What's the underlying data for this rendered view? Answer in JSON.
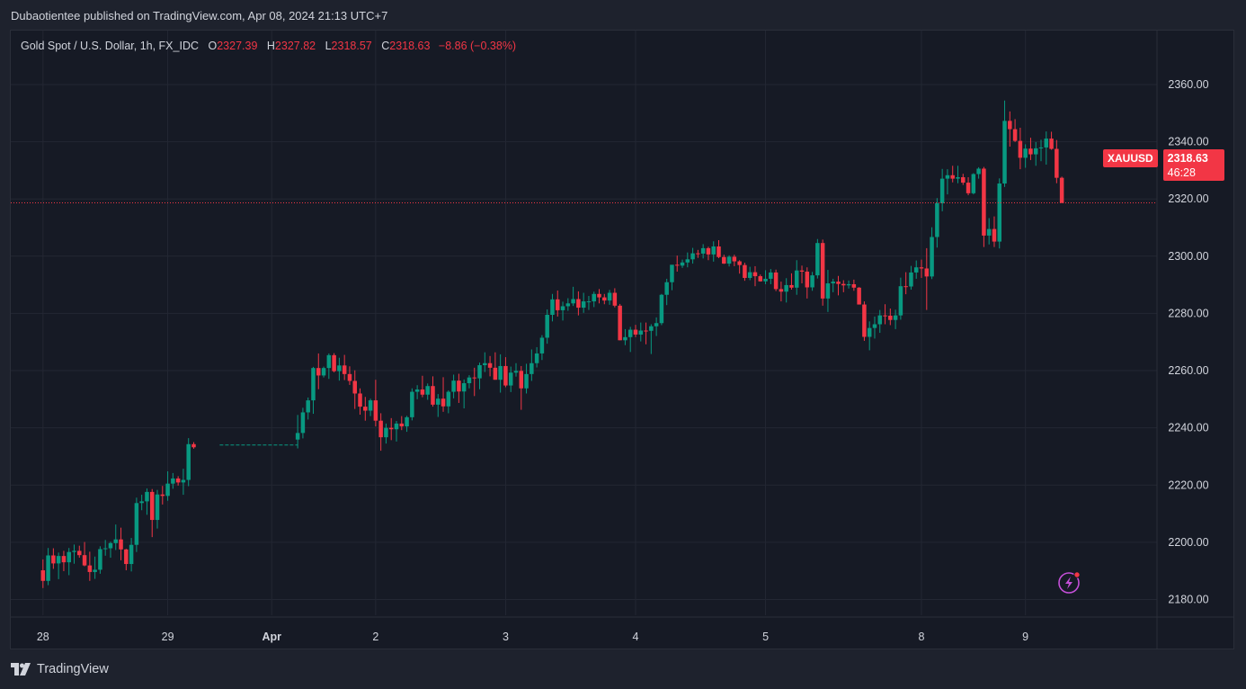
{
  "header": {
    "publish_text": "Dubaotientee published on TradingView.com, Apr 08, 2024 21:13 UTC+7"
  },
  "legend": {
    "title": "Gold Spot / U.S. Dollar, 1h, FX_IDC",
    "open_label": "O",
    "open": "2327.39",
    "high_label": "H",
    "high": "2327.82",
    "low_label": "L",
    "low": "2318.57",
    "close_label": "C",
    "close": "2318.63",
    "change": "−8.86 (−0.38%)"
  },
  "price_flag": {
    "symbol": "XAUUSD",
    "price": "2318.63",
    "countdown": "46:28"
  },
  "brand": {
    "name": "TradingView"
  },
  "colors": {
    "up": "#089981",
    "down": "#f23645",
    "bg": "#161a25",
    "grid": "#232733",
    "text": "#d1d4dc",
    "alert_icon": "#e040fb"
  },
  "icons": {
    "alert": "lightning-alert-icon",
    "logo": "tradingview-logo-icon"
  },
  "chart_data": {
    "type": "candlestick",
    "symbol": "XAUUSD",
    "interval": "1h",
    "y_axis": {
      "ticks": [
        2180,
        2200,
        2220,
        2240,
        2260,
        2280,
        2300,
        2320,
        2340,
        2360
      ],
      "tick_labels": [
        "2180.00",
        "2200.00",
        "2220.00",
        "2240.00",
        "2260.00",
        "2280.00",
        "2300.00",
        "2320.00",
        "2340.00",
        "2360.00"
      ],
      "range": [
        2166,
        2382
      ]
    },
    "x_axis": {
      "labels": [
        "28",
        "29",
        "Apr",
        "2",
        "3",
        "4",
        "5",
        "8",
        "9"
      ],
      "positions": [
        0,
        24,
        44,
        64,
        89,
        114,
        139,
        169,
        189
      ],
      "range": [
        -5.5,
        215
      ]
    },
    "grid": true,
    "last_price_line": 2318.63,
    "flat_gap": {
      "from_index": 34,
      "to_index": 49,
      "value": 2234
    },
    "candles": [
      [
        0,
        2190.2,
        2194,
        2184,
        2186.5
      ],
      [
        1,
        2186.5,
        2198,
        2185,
        2195.4
      ],
      [
        2,
        2195.4,
        2197.9,
        2190.7,
        2192.6
      ],
      [
        3,
        2192.6,
        2196.4,
        2187.1,
        2195.2
      ],
      [
        4,
        2195.2,
        2197,
        2189.9,
        2193
      ],
      [
        5,
        2193,
        2198,
        2188.5,
        2196.6
      ],
      [
        6,
        2196.6,
        2199.2,
        2192.5,
        2197
      ],
      [
        7,
        2197,
        2198.8,
        2194.6,
        2195.5
      ],
      [
        8,
        2195.5,
        2200.1,
        2191.6,
        2191.9
      ],
      [
        9,
        2191.9,
        2196.7,
        2186.5,
        2189.6
      ],
      [
        10,
        2189.6,
        2195,
        2187.2,
        2190.4
      ],
      [
        11,
        2190.4,
        2198.6,
        2189,
        2197.6
      ],
      [
        12,
        2197.6,
        2200.8,
        2195.3,
        2197.9
      ],
      [
        13,
        2197.9,
        2200.2,
        2194.6,
        2199.7
      ],
      [
        14,
        2199.7,
        2206.2,
        2197.3,
        2201
      ],
      [
        15,
        2201,
        2205.1,
        2193.7,
        2197.5
      ],
      [
        16,
        2197.5,
        2197.7,
        2190.2,
        2192.4
      ],
      [
        17,
        2192.4,
        2201.5,
        2189.8,
        2199.1
      ],
      [
        18,
        2199.1,
        2215.6,
        2196.6,
        2213.7
      ],
      [
        19,
        2213.7,
        2216.6,
        2211.2,
        2214.3
      ],
      [
        20,
        2214.3,
        2218.8,
        2209.6,
        2217.6
      ],
      [
        21,
        2217.6,
        2218.6,
        2201.8,
        2207.8
      ],
      [
        22,
        2207.8,
        2218.3,
        2204.8,
        2216.7
      ],
      [
        23,
        2216.7,
        2219.7,
        2213.2,
        2216.2
      ],
      [
        24,
        2216.2,
        2224.8,
        2214.5,
        2220.5
      ],
      [
        25,
        2220.5,
        2224.2,
        2218.7,
        2222.3
      ],
      [
        26,
        2222.3,
        2223.1,
        2219.8,
        2220.9
      ],
      [
        27,
        2220.9,
        2225.7,
        2216.6,
        2221.8
      ],
      [
        28,
        2221.8,
        2236.4,
        2219.6,
        2234.3
      ],
      [
        29,
        2234.3,
        2235,
        2232.7,
        2233.2
      ],
      [
        49,
        2235.9,
        2244.5,
        2232.8,
        2238.2
      ],
      [
        50,
        2238.2,
        2247,
        2236.3,
        2245.4
      ],
      [
        51,
        2245.4,
        2250.6,
        2242.9,
        2249.6
      ],
      [
        52,
        2249.6,
        2261.3,
        2244.9,
        2260.9
      ],
      [
        53,
        2260.9,
        2266,
        2253.5,
        2258.3
      ],
      [
        54,
        2258.3,
        2261.4,
        2257.6,
        2260.9
      ],
      [
        55,
        2260.9,
        2266,
        2257.1,
        2265.4
      ],
      [
        56,
        2265.4,
        2266.1,
        2259.4,
        2259.8
      ],
      [
        57,
        2259.8,
        2264.5,
        2256.5,
        2261.8
      ],
      [
        58,
        2261.8,
        2265.5,
        2256.7,
        2258.8
      ],
      [
        59,
        2258.8,
        2261.5,
        2255,
        2256.4
      ],
      [
        60,
        2256.4,
        2260.1,
        2246.6,
        2252
      ],
      [
        61,
        2252,
        2253.8,
        2244.6,
        2247.4
      ],
      [
        62,
        2247.4,
        2250.8,
        2242.5,
        2246
      ],
      [
        63,
        2246,
        2250.2,
        2244.1,
        2249.6
      ],
      [
        64,
        2249.6,
        2256.8,
        2240.5,
        2242.5
      ],
      [
        65,
        2242.5,
        2245.1,
        2232,
        2236.7
      ],
      [
        66,
        2236.7,
        2241.5,
        2234.5,
        2240
      ],
      [
        67,
        2240,
        2243.4,
        2235.7,
        2239.5
      ],
      [
        68,
        2239.5,
        2242.4,
        2235.2,
        2241.5
      ],
      [
        69,
        2241.5,
        2244.1,
        2239.2,
        2240.5
      ],
      [
        70,
        2240.5,
        2244.2,
        2238.6,
        2243.7
      ],
      [
        71,
        2243.7,
        2253.8,
        2242.6,
        2252.6
      ],
      [
        72,
        2252.6,
        2254.9,
        2250,
        2253.4
      ],
      [
        73,
        2253.4,
        2258.2,
        2250.7,
        2251.6
      ],
      [
        74,
        2251.6,
        2255.5,
        2249.8,
        2254.6
      ],
      [
        75,
        2254.6,
        2258,
        2247.4,
        2248.1
      ],
      [
        76,
        2248.1,
        2251.8,
        2243.8,
        2250.2
      ],
      [
        77,
        2250.2,
        2257.7,
        2245.6,
        2247.5
      ],
      [
        78,
        2247.5,
        2253.1,
        2245.1,
        2252.6
      ],
      [
        79,
        2252.6,
        2258.6,
        2250.3,
        2256.5
      ],
      [
        80,
        2256.5,
        2258.9,
        2248.7,
        2252.7
      ],
      [
        81,
        2252.7,
        2256.9,
        2246.8,
        2255.6
      ],
      [
        82,
        2255.6,
        2258.4,
        2253.8,
        2257.6
      ],
      [
        83,
        2257.6,
        2261,
        2251.1,
        2257.3
      ],
      [
        84,
        2257.3,
        2262.8,
        2253.5,
        2261.9
      ],
      [
        85,
        2261.9,
        2266.4,
        2259.5,
        2262.6
      ],
      [
        86,
        2262.6,
        2265.1,
        2258,
        2261
      ],
      [
        87,
        2261,
        2266.4,
        2256.8,
        2256.8
      ],
      [
        88,
        2256.8,
        2265.7,
        2252.3,
        2261.6
      ],
      [
        89,
        2261.6,
        2264.7,
        2254.2,
        2254.8
      ],
      [
        90,
        2254.8,
        2261.4,
        2252.5,
        2259.3
      ],
      [
        91,
        2259.3,
        2262.6,
        2257.9,
        2259.9
      ],
      [
        92,
        2259.9,
        2261.6,
        2246.3,
        2253.8
      ],
      [
        93,
        2253.8,
        2262.4,
        2252,
        2258.8
      ],
      [
        94,
        2258.8,
        2267.4,
        2256.4,
        2262.6
      ],
      [
        95,
        2262.6,
        2268.2,
        2261.1,
        2266
      ],
      [
        96,
        2266,
        2272.4,
        2263.7,
        2271.5
      ],
      [
        97,
        2271.5,
        2281.4,
        2269.4,
        2279.5
      ],
      [
        98,
        2279.5,
        2286.8,
        2277.2,
        2284.9
      ],
      [
        99,
        2284.9,
        2288,
        2278.9,
        2281.1
      ],
      [
        100,
        2281.1,
        2284.1,
        2277.5,
        2282.5
      ],
      [
        101,
        2282.5,
        2285.3,
        2280.9,
        2283.5
      ],
      [
        102,
        2283.5,
        2289.3,
        2282.6,
        2285
      ],
      [
        103,
        2285,
        2287.7,
        2279.3,
        2282
      ],
      [
        104,
        2282,
        2287.2,
        2280.2,
        2284.2
      ],
      [
        105,
        2284.2,
        2286.1,
        2281.2,
        2284.2
      ],
      [
        106,
        2284.2,
        2287.6,
        2282.2,
        2286.8
      ],
      [
        107,
        2286.8,
        2288.5,
        2283.5,
        2285.6
      ],
      [
        108,
        2285.6,
        2286.8,
        2283.2,
        2284.5
      ],
      [
        109,
        2284.5,
        2288.2,
        2283,
        2287.2
      ],
      [
        110,
        2287.2,
        2288.8,
        2282.1,
        2282.7
      ],
      [
        111,
        2282.7,
        2283.3,
        2270.6,
        2270.6
      ],
      [
        112,
        2270.6,
        2274.5,
        2268.9,
        2271.7
      ],
      [
        113,
        2271.7,
        2275.3,
        2266.5,
        2274.3
      ],
      [
        114,
        2274.3,
        2276,
        2271.7,
        2272.6
      ],
      [
        115,
        2272.6,
        2276.8,
        2270.2,
        2274
      ],
      [
        116,
        2274,
        2276.8,
        2269.2,
        2273.9
      ],
      [
        117,
        2273.9,
        2276.2,
        2265.8,
        2275.5
      ],
      [
        118,
        2275.5,
        2278.6,
        2272.1,
        2276.6
      ],
      [
        119,
        2276.6,
        2286.8,
        2275.9,
        2286.5
      ],
      [
        120,
        2286.5,
        2292.1,
        2282.9,
        2290.9
      ],
      [
        121,
        2290.9,
        2296.9,
        2288.1,
        2297
      ],
      [
        122,
        2297,
        2300.2,
        2294.6,
        2296.7
      ],
      [
        123,
        2296.7,
        2298.8,
        2295.9,
        2297.8
      ],
      [
        124,
        2297.8,
        2301.3,
        2296.1,
        2298.9
      ],
      [
        125,
        2298.9,
        2302.9,
        2297.4,
        2301
      ],
      [
        126,
        2301,
        2302.2,
        2299.4,
        2300.9
      ],
      [
        127,
        2300.9,
        2304.2,
        2299.2,
        2302.8
      ],
      [
        128,
        2302.8,
        2303.3,
        2298.6,
        2300.6
      ],
      [
        129,
        2300.6,
        2305.2,
        2298.1,
        2303.4
      ],
      [
        130,
        2303.4,
        2305.6,
        2299.3,
        2299.7
      ],
      [
        131,
        2299.7,
        2300.5,
        2297.3,
        2297.4
      ],
      [
        132,
        2297.4,
        2300.3,
        2296.4,
        2299.8
      ],
      [
        133,
        2299.8,
        2300.5,
        2296.5,
        2298.2
      ],
      [
        134,
        2298.2,
        2298.6,
        2293.9,
        2296.9
      ],
      [
        135,
        2296.9,
        2297.7,
        2291.4,
        2292.4
      ],
      [
        136,
        2292.4,
        2296.3,
        2291.6,
        2294.4
      ],
      [
        137,
        2294.4,
        2296.5,
        2289.5,
        2293
      ],
      [
        138,
        2293,
        2293.6,
        2291.1,
        2291.2
      ],
      [
        139,
        2291.2,
        2295.1,
        2290.2,
        2292.1
      ],
      [
        140,
        2292.1,
        2295.5,
        2290.2,
        2294.3
      ],
      [
        141,
        2294.3,
        2295.3,
        2287.8,
        2288.5
      ],
      [
        142,
        2288.5,
        2291.1,
        2284.2,
        2287.6
      ],
      [
        143,
        2287.6,
        2292.3,
        2283.8,
        2289.9
      ],
      [
        144,
        2289.9,
        2294,
        2288.3,
        2289
      ],
      [
        145,
        2289,
        2298.6,
        2286.5,
        2295
      ],
      [
        146,
        2295,
        2296.7,
        2290.5,
        2294.6
      ],
      [
        147,
        2294.6,
        2296.1,
        2285.2,
        2289.1
      ],
      [
        148,
        2289.1,
        2294.5,
        2287.9,
        2293.3
      ],
      [
        149,
        2293.3,
        2306,
        2292.2,
        2304.6
      ],
      [
        150,
        2304.6,
        2305.8,
        2282.7,
        2285.2
      ],
      [
        151,
        2285.2,
        2295.2,
        2280.5,
        2290.5
      ],
      [
        152,
        2290.5,
        2292.1,
        2287.4,
        2291.1
      ],
      [
        153,
        2291.1,
        2293.1,
        2286.3,
        2290.3
      ],
      [
        154,
        2290.3,
        2291.6,
        2287.4,
        2289.8
      ],
      [
        155,
        2289.8,
        2291.5,
        2288.7,
        2290.2
      ],
      [
        156,
        2290.2,
        2291.8,
        2287.9,
        2289
      ],
      [
        157,
        2289,
        2289.2,
        2283.1,
        2283.1
      ],
      [
        158,
        2283.1,
        2284.2,
        2270.4,
        2271.8
      ],
      [
        159,
        2271.8,
        2277.2,
        2267.1,
        2274.9
      ],
      [
        160,
        2274.9,
        2278.9,
        2271.2,
        2276.2
      ],
      [
        161,
        2276.2,
        2281.2,
        2273.2,
        2279.3
      ],
      [
        162,
        2279.3,
        2283.2,
        2276.2,
        2279.2
      ],
      [
        163,
        2279.2,
        2281.7,
        2275.9,
        2277.7
      ],
      [
        164,
        2277.7,
        2281.3,
        2274.5,
        2279.3
      ],
      [
        165,
        2279.3,
        2292.5,
        2277.8,
        2289.5
      ],
      [
        166,
        2289.5,
        2294.4,
        2286.7,
        2289.4
      ],
      [
        167,
        2289.4,
        2296.6,
        2288.3,
        2294.3
      ],
      [
        168,
        2294.3,
        2298.5,
        2292.1,
        2296.1
      ],
      [
        169,
        2296.1,
        2298.8,
        2292.4,
        2295.7
      ],
      [
        170,
        2295.7,
        2302.8,
        2281.2,
        2292.9
      ],
      [
        171,
        2292.9,
        2310.1,
        2292,
        2306.7
      ],
      [
        172,
        2306.7,
        2320.3,
        2303,
        2318.5
      ],
      [
        173,
        2318.5,
        2330.5,
        2315.7,
        2327.1
      ],
      [
        174,
        2327.1,
        2330.4,
        2321.6,
        2328.3
      ],
      [
        175,
        2328.3,
        2331.6,
        2325.8,
        2327.1
      ],
      [
        176,
        2327.1,
        2331.6,
        2325.5,
        2327.6
      ],
      [
        177,
        2327.6,
        2328.8,
        2324.9,
        2325.7
      ],
      [
        178,
        2325.7,
        2327.6,
        2321.3,
        2322
      ],
      [
        179,
        2322,
        2329,
        2321.6,
        2328.7
      ],
      [
        180,
        2328.7,
        2331.1,
        2327.1,
        2330.6
      ],
      [
        181,
        2330.6,
        2331.2,
        2303.2,
        2307.2
      ],
      [
        182,
        2307.2,
        2313.3,
        2304.1,
        2309.5
      ],
      [
        183,
        2309.5,
        2313.9,
        2303.2,
        2305.1
      ],
      [
        184,
        2305.1,
        2327.2,
        2302.7,
        2325.4
      ],
      [
        185,
        2325.4,
        2354.4,
        2324.2,
        2347.3
      ],
      [
        186,
        2347.3,
        2350.6,
        2338.3,
        2344.4
      ],
      [
        187,
        2344.4,
        2347.9,
        2339.9,
        2340.3
      ],
      [
        188,
        2340.3,
        2344.9,
        2330.4,
        2334.4
      ],
      [
        189,
        2334.4,
        2339.1,
        2330.9,
        2337.6
      ],
      [
        190,
        2337.6,
        2341.4,
        2333.6,
        2335.6
      ],
      [
        191,
        2335.6,
        2339.9,
        2331.6,
        2337.7
      ],
      [
        192,
        2337.7,
        2340.7,
        2333.2,
        2338
      ],
      [
        193,
        2338,
        2343.6,
        2332,
        2341.1
      ],
      [
        194,
        2341.1,
        2343.5,
        2337.2,
        2337.5
      ],
      [
        195,
        2337.5,
        2340.6,
        2325.5,
        2327.4
      ],
      [
        196,
        2327.4,
        2327.8,
        2318.6,
        2318.6
      ]
    ]
  }
}
